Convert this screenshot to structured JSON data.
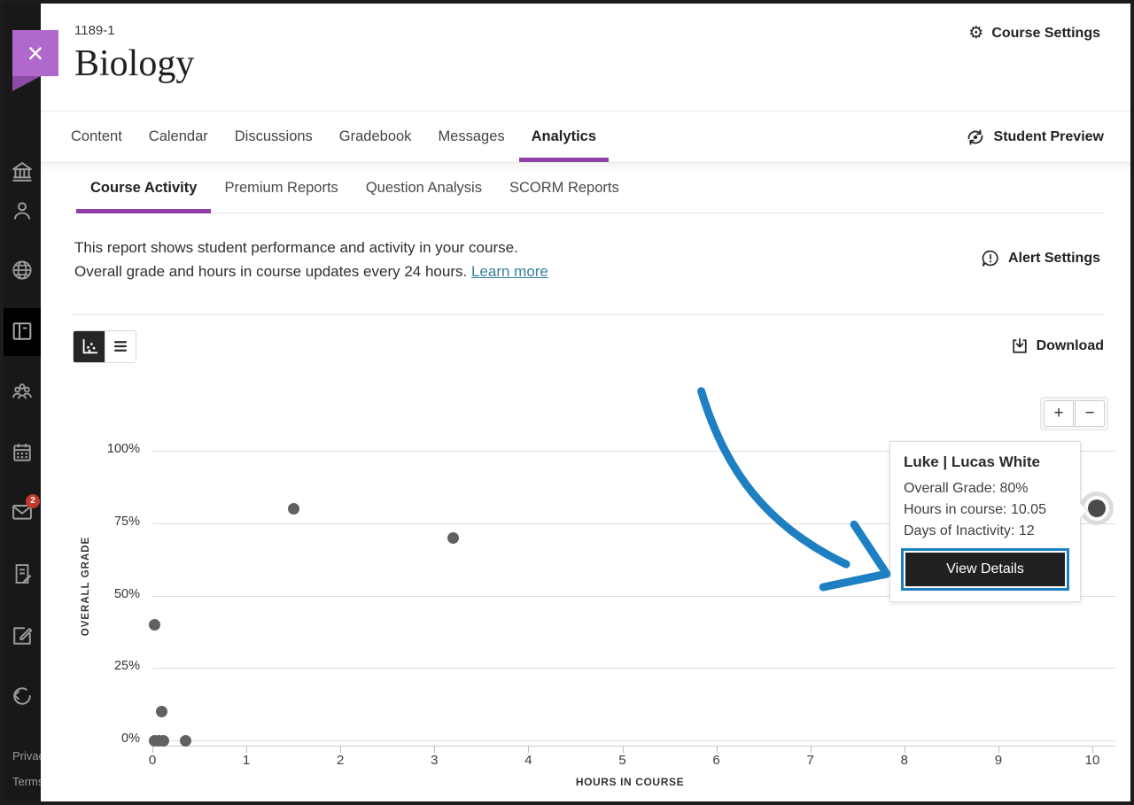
{
  "header": {
    "course_id": "1189-1",
    "course_title": "Biology",
    "settings_label": "Course Settings"
  },
  "nav": {
    "tabs": [
      {
        "label": "Content"
      },
      {
        "label": "Calendar"
      },
      {
        "label": "Discussions"
      },
      {
        "label": "Gradebook"
      },
      {
        "label": "Messages"
      },
      {
        "label": "Analytics",
        "active": true
      }
    ],
    "student_preview_label": "Student Preview"
  },
  "subnav": {
    "tabs": [
      {
        "label": "Course Activity",
        "active": true
      },
      {
        "label": "Premium Reports"
      },
      {
        "label": "Question Analysis"
      },
      {
        "label": "SCORM Reports"
      }
    ]
  },
  "report": {
    "description_line1": "This report shows student performance and activity in your course.",
    "description_line2": "Overall grade and hours in course updates every 24 hours.",
    "learn_more_label": "Learn more",
    "alert_settings_label": "Alert Settings",
    "download_label": "Download"
  },
  "zoom_controls": {
    "zoom_in": "+",
    "zoom_out": "−"
  },
  "sidebar": {
    "close_icon": "×",
    "items": [
      {
        "name": "institution",
        "icon": "institution"
      },
      {
        "name": "profile",
        "icon": "profile"
      },
      {
        "name": "globe",
        "icon": "globe"
      },
      {
        "name": "courses",
        "icon": "courses",
        "active": true
      },
      {
        "name": "organizations",
        "icon": "groups"
      },
      {
        "name": "calendar",
        "icon": "calendar"
      },
      {
        "name": "messages",
        "icon": "mail",
        "badge": "2"
      },
      {
        "name": "grades",
        "icon": "grades"
      },
      {
        "name": "tools",
        "icon": "tools"
      },
      {
        "name": "sign-out",
        "icon": "signout"
      }
    ],
    "footer_links": [
      "Privacy",
      "Terms"
    ]
  },
  "chart_data": {
    "type": "scatter",
    "xlabel": "HOURS IN COURSE",
    "ylabel": "OVERALL GRADE",
    "xlim": [
      0,
      10.5
    ],
    "ylim": [
      0,
      100
    ],
    "grid": "horizontal",
    "x_ticks": [
      0,
      1,
      2,
      3,
      4,
      5,
      6,
      7,
      8,
      9,
      10
    ],
    "y_ticks": [
      {
        "value": 0,
        "label": "0%"
      },
      {
        "value": 25,
        "label": "25%"
      },
      {
        "value": 50,
        "label": "50%"
      },
      {
        "value": 75,
        "label": "75%"
      },
      {
        "value": 100,
        "label": "100%"
      }
    ],
    "points": [
      {
        "x": 0.02,
        "y": 0
      },
      {
        "x": 0.07,
        "y": 0
      },
      {
        "x": 0.12,
        "y": 0
      },
      {
        "x": 0.35,
        "y": 0
      },
      {
        "x": 0.1,
        "y": 10
      },
      {
        "x": 0.02,
        "y": 40
      },
      {
        "x": 1.5,
        "y": 80
      },
      {
        "x": 3.2,
        "y": 70
      },
      {
        "x": 10.05,
        "y": 80,
        "highlighted": true
      }
    ]
  },
  "tooltip": {
    "title": "Luke | Lucas White",
    "lines": [
      "Overall Grade: 80%",
      "Hours in course: 10.05",
      "Days of Inactivity: 12"
    ],
    "button_label": "View Details"
  },
  "colors": {
    "accent_purple": "#8e3fa8",
    "ribbon_purple": "#b168cc",
    "arrow_blue": "#1e80c2",
    "link_teal": "#35809e",
    "badge_red": "#bf3a2b",
    "dot_gray": "#616161"
  }
}
